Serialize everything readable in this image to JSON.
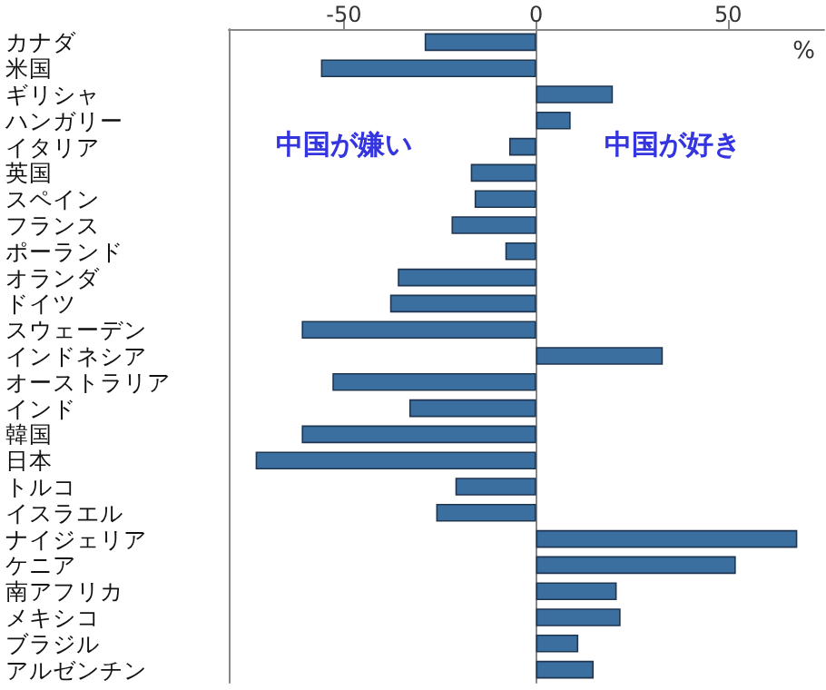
{
  "chart_data": {
    "type": "bar",
    "orientation": "horizontal",
    "categories": [
      "カナダ",
      "米国",
      "ギリシャ",
      "ハンガリー",
      "イタリア",
      "英国",
      "スペイン",
      "フランス",
      "ポーランド",
      "オランダ",
      "ドイツ",
      "スウェーデン",
      "インドネシア",
      "オーストラリア",
      "インド",
      "韓国",
      "日本",
      "トルコ",
      "イスラエル",
      "ナイジェリア",
      "ケニア",
      "南アフリカ",
      "メキシコ",
      "ブラジル",
      "アルゼンチン"
    ],
    "values": [
      -29,
      -56,
      20,
      9,
      -7,
      -17,
      -16,
      -22,
      -8,
      -36,
      -38,
      -61,
      33,
      -53,
      -33,
      -61,
      -73,
      -21,
      -26,
      68,
      52,
      21,
      22,
      11,
      15
    ],
    "color": "#3a6fa0",
    "xlim": [
      -80,
      75
    ],
    "xticks": [
      -50,
      0,
      50
    ],
    "annotations": [
      "%",
      "中国が嫌い",
      "中国が好き"
    ]
  }
}
